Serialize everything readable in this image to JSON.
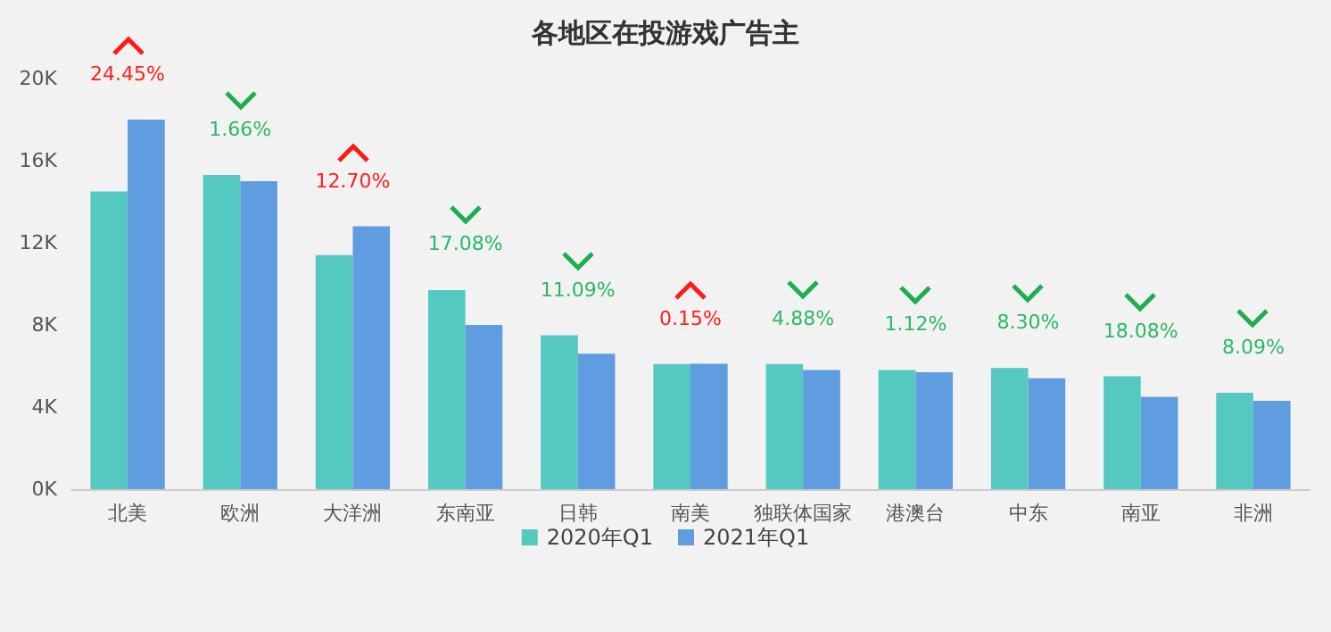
{
  "chart_data": {
    "type": "bar",
    "title": "各地区在投游戏广告主",
    "categories": [
      "北美",
      "欧洲",
      "大洋洲",
      "东南亚",
      "日韩",
      "南美",
      "独联体国家",
      "港澳台",
      "中东",
      "南亚",
      "非洲"
    ],
    "series": [
      {
        "name": "2020年Q1",
        "color": "#55c9c0",
        "values": [
          14500,
          15300,
          11400,
          9700,
          7500,
          6100,
          6100,
          5800,
          5900,
          5500,
          4700
        ]
      },
      {
        "name": "2021年Q1",
        "color": "#609de0",
        "values": [
          18000,
          15000,
          12800,
          8000,
          6600,
          6110,
          5800,
          5700,
          5400,
          4500,
          4300
        ]
      }
    ],
    "ylim": [
      0,
      20000
    ],
    "yticks": [
      {
        "value": 0,
        "label": "0K"
      },
      {
        "value": 4000,
        "label": "4K"
      },
      {
        "value": 8000,
        "label": "8K"
      },
      {
        "value": 12000,
        "label": "12K"
      },
      {
        "value": 16000,
        "label": "16K"
      },
      {
        "value": 20000,
        "label": "20K"
      }
    ],
    "grid": false,
    "legend": "bottom",
    "annotations": [
      {
        "text": "24.45%",
        "x": "北美",
        "y": 18000
      },
      {
        "text": "1.66%",
        "x": "欧洲",
        "y": 15300
      },
      {
        "text": "12.70%",
        "x": "大洋洲",
        "y": 12800
      },
      {
        "text": "17.08%",
        "x": "东南亚",
        "y": 9700
      },
      {
        "text": "11.09%",
        "x": "日韩",
        "y": 7500
      },
      {
        "text": "0.15%",
        "x": "南美",
        "y": 6110
      },
      {
        "text": "4.88%",
        "x": "独联体国家",
        "y": 6100
      },
      {
        "text": "1.12%",
        "x": "港澳台",
        "y": 5800
      },
      {
        "text": "8.30%",
        "x": "中东",
        "y": 5900
      },
      {
        "text": "18.08%",
        "x": "南亚",
        "y": 5500
      },
      {
        "text": "8.09%",
        "x": "非洲",
        "y": 4700
      }
    ]
  }
}
